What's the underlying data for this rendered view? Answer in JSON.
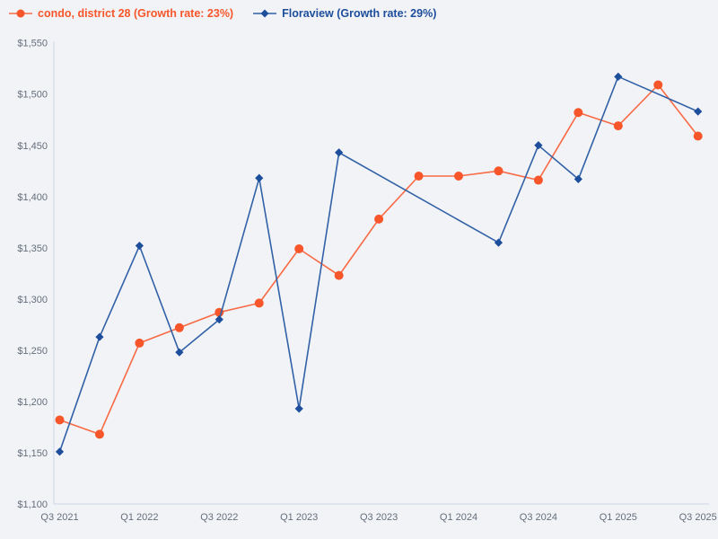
{
  "legend": {
    "items": [
      {
        "label": "condo, district 28 (Growth rate: 23%)",
        "marker": "circle",
        "color": "#f7562a",
        "line_color": "#f86a45"
      },
      {
        "label": "Floraview (Growth rate: 29%)",
        "marker": "diamond",
        "color": "#1d4e9b",
        "line_color": "#3161a6"
      }
    ]
  },
  "chart_data": {
    "type": "line",
    "categories": [
      "Q3 2021",
      "Q4 2021",
      "Q1 2022",
      "Q2 2022",
      "Q3 2022",
      "Q4 2022",
      "Q1 2023",
      "Q2 2023",
      "Q3 2023",
      "Q4 2023",
      "Q1 2024",
      "Q2 2024",
      "Q3 2024",
      "Q4 2024",
      "Q1 2025",
      "Q2 2025",
      "Q3 2025"
    ],
    "series": [
      {
        "name": "condo, district 28",
        "growth_rate": "23%",
        "marker": "circle",
        "color": "#f7562a",
        "line_color": "#f86a45",
        "values": [
          1182,
          1168,
          1257,
          1272,
          1287,
          1296,
          1349,
          1323,
          1378,
          1420,
          1420,
          1425,
          1416,
          1482,
          1469,
          1509,
          1459
        ]
      },
      {
        "name": "Floraview",
        "growth_rate": "29%",
        "marker": "diamond",
        "color": "#1d4e9b",
        "line_color": "#3161a6",
        "values": [
          1151,
          1263,
          1352,
          1248,
          1280,
          1418,
          1193,
          1443,
          null,
          null,
          null,
          1355,
          1450,
          1417,
          1517,
          null,
          1483
        ]
      }
    ],
    "title": "",
    "xlabel": "",
    "ylabel": "",
    "ylim": [
      1100,
      1550
    ],
    "ytick_step": 50,
    "ytick_prefix": "$",
    "ytick_labels": [
      "$1,100",
      "$1,150",
      "$1,200",
      "$1,250",
      "$1,300",
      "$1,350",
      "$1,400",
      "$1,450",
      "$1,500",
      "$1,550"
    ],
    "xtick_labels_shown": [
      "Q3 2021",
      "Q1 2022",
      "Q3 2022",
      "Q1 2023",
      "Q3 2023",
      "Q1 2024",
      "Q3 2024",
      "Q1 2025",
      "Q3 2025"
    ],
    "xtick_every": 2,
    "grid": false,
    "legend_position": "top-left",
    "axis_color": "#ccd6e6",
    "tick_label_color": "#646e7b",
    "background_color": "#f2f3f7"
  }
}
